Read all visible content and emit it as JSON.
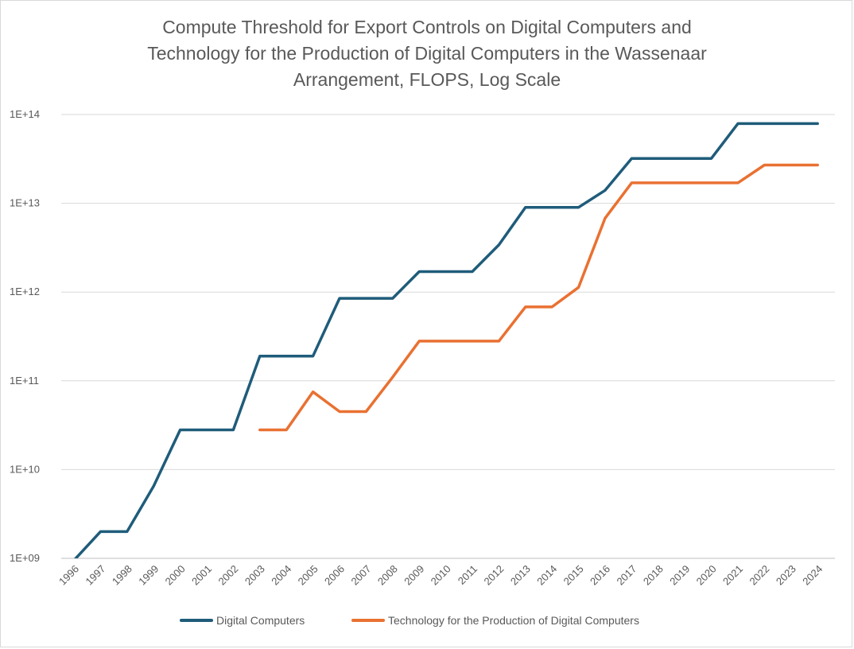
{
  "chart_data": {
    "type": "line",
    "title_lines": [
      "Compute Threshold for Export Controls on Digital Computers and",
      "Technology for the Production of Digital Computers in the Wassenaar",
      "Arrangement, FLOPS, Log Scale"
    ],
    "xlabel": "",
    "ylabel": "",
    "y_scale": "log",
    "ylim": [
      1000000000.0,
      100000000000000.0
    ],
    "grid": true,
    "legend_position": "bottom",
    "y_tick_values": [
      1000000000.0,
      10000000000.0,
      100000000000.0,
      1000000000000.0,
      10000000000000.0,
      100000000000000.0
    ],
    "y_tick_labels": [
      "1E+09",
      "1E+10",
      "1E+11",
      "1E+12",
      "1E+13",
      "1E+14"
    ],
    "categories": [
      "1996",
      "1997",
      "1998",
      "1999",
      "2000",
      "2001",
      "2002",
      "2003",
      "2004",
      "2005",
      "2006",
      "2007",
      "2008",
      "2009",
      "2010",
      "2011",
      "2012",
      "2013",
      "2014",
      "2015",
      "2016",
      "2017",
      "2018",
      "2019",
      "2020",
      "2021",
      "2022",
      "2023",
      "2024"
    ],
    "series": [
      {
        "name": "Digital Computers",
        "color": "#1f5c7a",
        "values": [
          950000000,
          2000000000,
          2000000000,
          6500000000,
          28000000000,
          28000000000,
          28000000000,
          190000000000,
          190000000000,
          190000000000,
          850000000000,
          850000000000,
          850000000000,
          1700000000000,
          1700000000000,
          1700000000000,
          3400000000000,
          9000000000000,
          9000000000000,
          9000000000000,
          14000000000000,
          32000000000000,
          32000000000000,
          32000000000000,
          32000000000000,
          79000000000000,
          79000000000000,
          79000000000000,
          79000000000000
        ]
      },
      {
        "name": "Technology for the Production of Digital Computers",
        "color": "#e97132",
        "values": [
          null,
          null,
          null,
          null,
          null,
          null,
          null,
          28000000000,
          28000000000,
          75000000000,
          45000000000,
          45000000000,
          110000000000,
          280000000000,
          280000000000,
          280000000000,
          280000000000,
          680000000000,
          680000000000,
          1130000000000,
          6800000000000,
          17000000000000,
          17000000000000,
          17000000000000,
          17000000000000,
          17000000000000,
          27000000000000,
          27000000000000,
          27000000000000
        ]
      }
    ]
  },
  "legend": {
    "series1_label": "Digital Computers",
    "series2_label": "Technology for the Production of Digital Computers"
  }
}
